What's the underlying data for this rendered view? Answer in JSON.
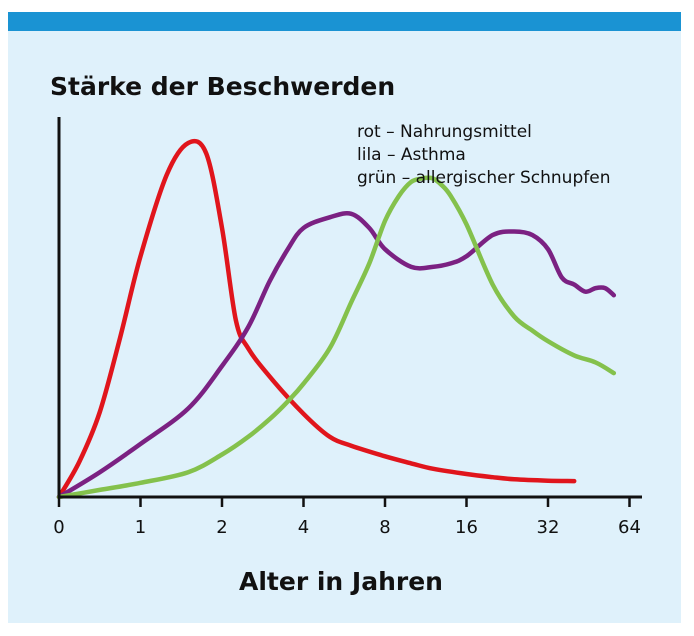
{
  "colors": {
    "background": "#dff1fb",
    "topbar": "#1a93d3",
    "axis": "#111111",
    "red": "#e0151c",
    "purple": "#7b2182",
    "green": "#84c14c"
  },
  "chart_data": {
    "type": "line",
    "title": "",
    "ylabel": "Stärke der Beschwerden",
    "xlabel": "Alter in Jahren",
    "x_scale": "log2 (age+1 style; 0,1,2,4,8,16,32,64 equally spaced)",
    "x_ticks": [
      "0",
      "1",
      "2",
      "4",
      "8",
      "16",
      "32",
      "64"
    ],
    "y_ticks": [],
    "xlim": [
      0,
      64
    ],
    "ylim": [
      0,
      100
    ],
    "grid": false,
    "legend": [
      {
        "text": "rot – Nahrungsmittel",
        "color": "red"
      },
      {
        "text": "lila – Asthma",
        "color": "purple"
      },
      {
        "text": "grün – allergischer Schnupfen",
        "color": "green"
      }
    ],
    "legend_position": "top-right",
    "series": [
      {
        "color": "red",
        "x": [
          0,
          0.25,
          0.5,
          0.75,
          1,
          1.25,
          1.5,
          1.75,
          2,
          2.25,
          2.5,
          3,
          4,
          5,
          6,
          8,
          10,
          12,
          16,
          20,
          24,
          32,
          40
        ],
        "y": [
          0,
          10,
          24,
          45,
          68,
          91,
          100,
          97,
          76,
          50,
          42,
          34,
          23.5,
          17,
          14.5,
          11.5,
          9.5,
          8,
          6.5,
          5.6,
          5.0,
          4.6,
          4.5
        ]
      },
      {
        "color": "purple",
        "x": [
          0,
          0.5,
          1,
          1.5,
          2,
          2.5,
          3,
          3.5,
          4,
          5,
          6,
          7,
          8,
          10,
          12,
          14,
          16,
          20,
          24,
          28,
          32,
          36,
          40,
          44,
          48,
          52,
          56
        ],
        "y": [
          0,
          7,
          15,
          25,
          37,
          48,
          61,
          70,
          76,
          79,
          80,
          76,
          70,
          65,
          65,
          66,
          68,
          74,
          75,
          74,
          70,
          62,
          60,
          58,
          59,
          59,
          57
        ]
      },
      {
        "color": "green",
        "x": [
          0,
          0.5,
          1,
          1.5,
          2,
          2.5,
          3,
          3.5,
          4,
          5,
          6,
          7,
          8,
          9,
          10,
          11,
          12,
          13,
          14,
          16,
          20,
          24,
          28,
          32,
          40,
          48,
          56
        ],
        "y": [
          0,
          2,
          4,
          7,
          12,
          17,
          22,
          27,
          32,
          42,
          55,
          66,
          78,
          85,
          89,
          90,
          90,
          88,
          85,
          77,
          60,
          51,
          47,
          44,
          40,
          38,
          35
        ]
      }
    ]
  }
}
